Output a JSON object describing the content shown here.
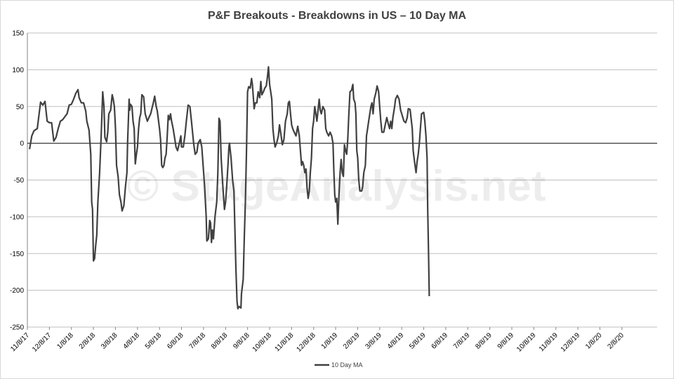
{
  "watermark": "© StageAnalysis.net",
  "chart_data": {
    "type": "line",
    "title": "P&F Breakouts - Breakdowns in US – 10 Day MA",
    "xlabel": "",
    "ylabel": "",
    "ylim": [
      -250,
      150
    ],
    "yticks": [
      150,
      100,
      50,
      0,
      -50,
      -100,
      -150,
      -200,
      -250
    ],
    "xtick_labels": [
      "11/8/17",
      "12/8/17",
      "1/8/18",
      "2/8/18",
      "3/8/18",
      "4/8/18",
      "5/8/18",
      "6/8/18",
      "7/8/18",
      "8/8/18",
      "9/8/18",
      "10/8/18",
      "11/8/18",
      "12/8/18",
      "1/8/19",
      "2/8/19",
      "3/8/19",
      "4/8/19",
      "5/8/19",
      "6/8/19",
      "7/8/19",
      "8/8/19",
      "9/8/19",
      "10/8/19",
      "11/8/19",
      "12/8/19",
      "1/8/20",
      "2/8/20"
    ],
    "grid": true,
    "legend_position": "bottom",
    "series": [
      {
        "name": "10 Day MA",
        "color": "#404040",
        "points": [
          [
            0.1,
            -8
          ],
          [
            0.2,
            10
          ],
          [
            0.3,
            17
          ],
          [
            0.45,
            20
          ],
          [
            0.6,
            56
          ],
          [
            0.7,
            52
          ],
          [
            0.8,
            57
          ],
          [
            0.9,
            30
          ],
          [
            1.0,
            28
          ],
          [
            1.1,
            28
          ],
          [
            1.2,
            3
          ],
          [
            1.3,
            8
          ],
          [
            1.4,
            20
          ],
          [
            1.5,
            30
          ],
          [
            1.6,
            32
          ],
          [
            1.7,
            36
          ],
          [
            1.8,
            40
          ],
          [
            1.9,
            52
          ],
          [
            2.0,
            53
          ],
          [
            2.1,
            60
          ],
          [
            2.2,
            68
          ],
          [
            2.3,
            73
          ],
          [
            2.35,
            62
          ],
          [
            2.45,
            55
          ],
          [
            2.55,
            55
          ],
          [
            2.65,
            44
          ],
          [
            2.7,
            30
          ],
          [
            2.8,
            18
          ],
          [
            2.88,
            -15
          ],
          [
            2.92,
            -80
          ],
          [
            2.96,
            -90
          ],
          [
            3.0,
            -160
          ],
          [
            3.05,
            -157
          ],
          [
            3.1,
            -140
          ],
          [
            3.15,
            -125
          ],
          [
            3.2,
            -80
          ],
          [
            3.28,
            -40
          ],
          [
            3.35,
            10
          ],
          [
            3.42,
            70
          ],
          [
            3.48,
            50
          ],
          [
            3.52,
            8
          ],
          [
            3.6,
            2
          ],
          [
            3.65,
            15
          ],
          [
            3.7,
            40
          ],
          [
            3.78,
            45
          ],
          [
            3.85,
            66
          ],
          [
            3.9,
            60
          ],
          [
            3.95,
            50
          ],
          [
            4.0,
            20
          ],
          [
            4.05,
            -30
          ],
          [
            4.12,
            -45
          ],
          [
            4.18,
            -70
          ],
          [
            4.25,
            -80
          ],
          [
            4.3,
            -92
          ],
          [
            4.38,
            -85
          ],
          [
            4.45,
            -60
          ],
          [
            4.52,
            -40
          ],
          [
            4.55,
            0
          ],
          [
            4.62,
            60
          ],
          [
            4.65,
            45
          ],
          [
            4.68,
            53
          ],
          [
            4.75,
            50
          ],
          [
            4.8,
            30
          ],
          [
            4.85,
            20
          ],
          [
            4.9,
            -28
          ],
          [
            4.95,
            -15
          ],
          [
            5.0,
            -5
          ],
          [
            5.05,
            20
          ],
          [
            5.1,
            35
          ],
          [
            5.15,
            40
          ],
          [
            5.2,
            66
          ],
          [
            5.28,
            63
          ],
          [
            5.35,
            40
          ],
          [
            5.45,
            30
          ],
          [
            5.52,
            35
          ],
          [
            5.6,
            40
          ],
          [
            5.68,
            50
          ],
          [
            5.72,
            55
          ],
          [
            5.78,
            64
          ],
          [
            5.85,
            50
          ],
          [
            5.9,
            44
          ],
          [
            6.0,
            20
          ],
          [
            6.05,
            5
          ],
          [
            6.1,
            -30
          ],
          [
            6.15,
            -33
          ],
          [
            6.2,
            -30
          ],
          [
            6.25,
            -20
          ],
          [
            6.3,
            -15
          ],
          [
            6.35,
            10
          ],
          [
            6.4,
            38
          ],
          [
            6.45,
            32
          ],
          [
            6.5,
            40
          ],
          [
            6.55,
            30
          ],
          [
            6.62,
            20
          ],
          [
            6.7,
            5
          ],
          [
            6.75,
            -5
          ],
          [
            6.82,
            -10
          ],
          [
            6.9,
            0
          ],
          [
            6.97,
            10
          ],
          [
            7.0,
            -5
          ],
          [
            7.08,
            -5
          ],
          [
            7.15,
            10
          ],
          [
            7.22,
            30
          ],
          [
            7.3,
            52
          ],
          [
            7.38,
            50
          ],
          [
            7.45,
            30
          ],
          [
            7.55,
            0
          ],
          [
            7.62,
            -15
          ],
          [
            7.7,
            -12
          ],
          [
            7.75,
            0
          ],
          [
            7.85,
            5
          ],
          [
            7.92,
            -5
          ],
          [
            7.98,
            -30
          ],
          [
            8.05,
            -60
          ],
          [
            8.12,
            -100
          ],
          [
            8.15,
            -133
          ],
          [
            8.22,
            -130
          ],
          [
            8.28,
            -105
          ],
          [
            8.32,
            -108
          ],
          [
            8.36,
            -135
          ],
          [
            8.4,
            -118
          ],
          [
            8.45,
            -130
          ],
          [
            8.52,
            -100
          ],
          [
            8.6,
            -80
          ],
          [
            8.65,
            -40
          ],
          [
            8.7,
            34
          ],
          [
            8.75,
            30
          ],
          [
            8.8,
            -20
          ],
          [
            8.88,
            -60
          ],
          [
            8.95,
            -90
          ],
          [
            9.0,
            -80
          ],
          [
            9.05,
            -60
          ],
          [
            9.12,
            -25
          ],
          [
            9.15,
            -5
          ],
          [
            9.18,
            0
          ],
          [
            9.25,
            -20
          ],
          [
            9.32,
            -50
          ],
          [
            9.38,
            -65
          ],
          [
            9.42,
            -110
          ],
          [
            9.47,
            -170
          ],
          [
            9.52,
            -215
          ],
          [
            9.56,
            -225
          ],
          [
            9.62,
            -222
          ],
          [
            9.7,
            -224
          ],
          [
            9.72,
            -205
          ],
          [
            9.8,
            -185
          ],
          [
            9.85,
            -130
          ],
          [
            9.9,
            -80
          ],
          [
            9.95,
            -10
          ],
          [
            10.0,
            70
          ],
          [
            10.05,
            77
          ],
          [
            10.12,
            75
          ],
          [
            10.18,
            88
          ],
          [
            10.22,
            80
          ],
          [
            10.3,
            47
          ],
          [
            10.35,
            55
          ],
          [
            10.42,
            55
          ],
          [
            10.48,
            70
          ],
          [
            10.55,
            62
          ],
          [
            10.6,
            84
          ],
          [
            10.65,
            66
          ],
          [
            10.72,
            70
          ],
          [
            10.78,
            75
          ],
          [
            10.85,
            78
          ],
          [
            10.9,
            90
          ],
          [
            10.95,
            104
          ],
          [
            11.0,
            80
          ],
          [
            11.05,
            70
          ],
          [
            11.1,
            60
          ],
          [
            11.15,
            20
          ],
          [
            11.2,
            5
          ],
          [
            11.25,
            -5
          ],
          [
            11.32,
            0
          ],
          [
            11.4,
            10
          ],
          [
            11.45,
            25
          ],
          [
            11.5,
            15
          ],
          [
            11.58,
            -2
          ],
          [
            11.65,
            5
          ],
          [
            11.72,
            30
          ],
          [
            11.8,
            40
          ],
          [
            11.85,
            55
          ],
          [
            11.9,
            57
          ],
          [
            11.95,
            40
          ],
          [
            12.0,
            25
          ],
          [
            12.05,
            20
          ],
          [
            12.12,
            15
          ],
          [
            12.2,
            10
          ],
          [
            12.28,
            23
          ],
          [
            12.35,
            10
          ],
          [
            12.4,
            -10
          ],
          [
            12.45,
            -30
          ],
          [
            12.5,
            -25
          ],
          [
            12.55,
            -30
          ],
          [
            12.6,
            -40
          ],
          [
            12.65,
            -35
          ],
          [
            12.7,
            -60
          ],
          [
            12.75,
            -75
          ],
          [
            12.8,
            -65
          ],
          [
            12.85,
            -40
          ],
          [
            12.9,
            -20
          ],
          [
            12.95,
            20
          ],
          [
            13.0,
            30
          ],
          [
            13.05,
            50
          ],
          [
            13.1,
            40
          ],
          [
            13.15,
            30
          ],
          [
            13.2,
            45
          ],
          [
            13.25,
            60
          ],
          [
            13.3,
            45
          ],
          [
            13.35,
            40
          ],
          [
            13.42,
            50
          ],
          [
            13.5,
            45
          ],
          [
            13.55,
            20
          ],
          [
            13.6,
            15
          ],
          [
            13.68,
            10
          ],
          [
            13.75,
            15
          ],
          [
            13.82,
            10
          ],
          [
            13.88,
            0
          ],
          [
            13.92,
            -40
          ],
          [
            13.96,
            -70
          ],
          [
            14.0,
            -80
          ],
          [
            14.05,
            -75
          ],
          [
            14.1,
            -110
          ],
          [
            14.15,
            -70
          ],
          [
            14.2,
            -40
          ],
          [
            14.25,
            -22
          ],
          [
            14.3,
            -40
          ],
          [
            14.35,
            -45
          ],
          [
            14.4,
            -2
          ],
          [
            14.45,
            -10
          ],
          [
            14.5,
            -15
          ],
          [
            14.55,
            5
          ],
          [
            14.6,
            40
          ],
          [
            14.65,
            70
          ],
          [
            14.72,
            72
          ],
          [
            14.78,
            80
          ],
          [
            14.82,
            60
          ],
          [
            14.88,
            55
          ],
          [
            14.92,
            40
          ],
          [
            14.96,
            -10
          ],
          [
            15.0,
            -20
          ],
          [
            15.05,
            -50
          ],
          [
            15.1,
            -65
          ],
          [
            15.18,
            -65
          ],
          [
            15.22,
            -60
          ],
          [
            15.28,
            -40
          ],
          [
            15.35,
            -30
          ],
          [
            15.4,
            10
          ],
          [
            15.45,
            20
          ],
          [
            15.5,
            30
          ],
          [
            15.55,
            40
          ],
          [
            15.6,
            50
          ],
          [
            15.65,
            55
          ],
          [
            15.7,
            40
          ],
          [
            15.75,
            60
          ],
          [
            15.82,
            68
          ],
          [
            15.88,
            78
          ],
          [
            15.95,
            70
          ],
          [
            16.0,
            50
          ],
          [
            16.05,
            30
          ],
          [
            16.1,
            15
          ],
          [
            16.18,
            15
          ],
          [
            16.25,
            25
          ],
          [
            16.32,
            35
          ],
          [
            16.4,
            25
          ],
          [
            16.45,
            20
          ],
          [
            16.5,
            30
          ],
          [
            16.55,
            20
          ],
          [
            16.6,
            35
          ],
          [
            16.68,
            50
          ],
          [
            16.72,
            60
          ],
          [
            16.8,
            65
          ],
          [
            16.88,
            60
          ],
          [
            16.95,
            45
          ],
          [
            17.0,
            40
          ],
          [
            17.05,
            35
          ],
          [
            17.1,
            30
          ],
          [
            17.18,
            28
          ],
          [
            17.25,
            35
          ],
          [
            17.3,
            47
          ],
          [
            17.38,
            46
          ],
          [
            17.42,
            35
          ],
          [
            17.48,
            20
          ],
          [
            17.52,
            -10
          ],
          [
            17.58,
            -25
          ],
          [
            17.65,
            -40
          ],
          [
            17.7,
            -25
          ],
          [
            17.75,
            -15
          ],
          [
            17.8,
            0
          ],
          [
            17.85,
            20
          ],
          [
            17.9,
            40
          ],
          [
            18.0,
            42
          ],
          [
            18.05,
            30
          ],
          [
            18.1,
            10
          ],
          [
            18.15,
            -20
          ],
          [
            18.18,
            -90
          ],
          [
            18.22,
            -150
          ],
          [
            18.25,
            -208
          ]
        ]
      }
    ]
  }
}
